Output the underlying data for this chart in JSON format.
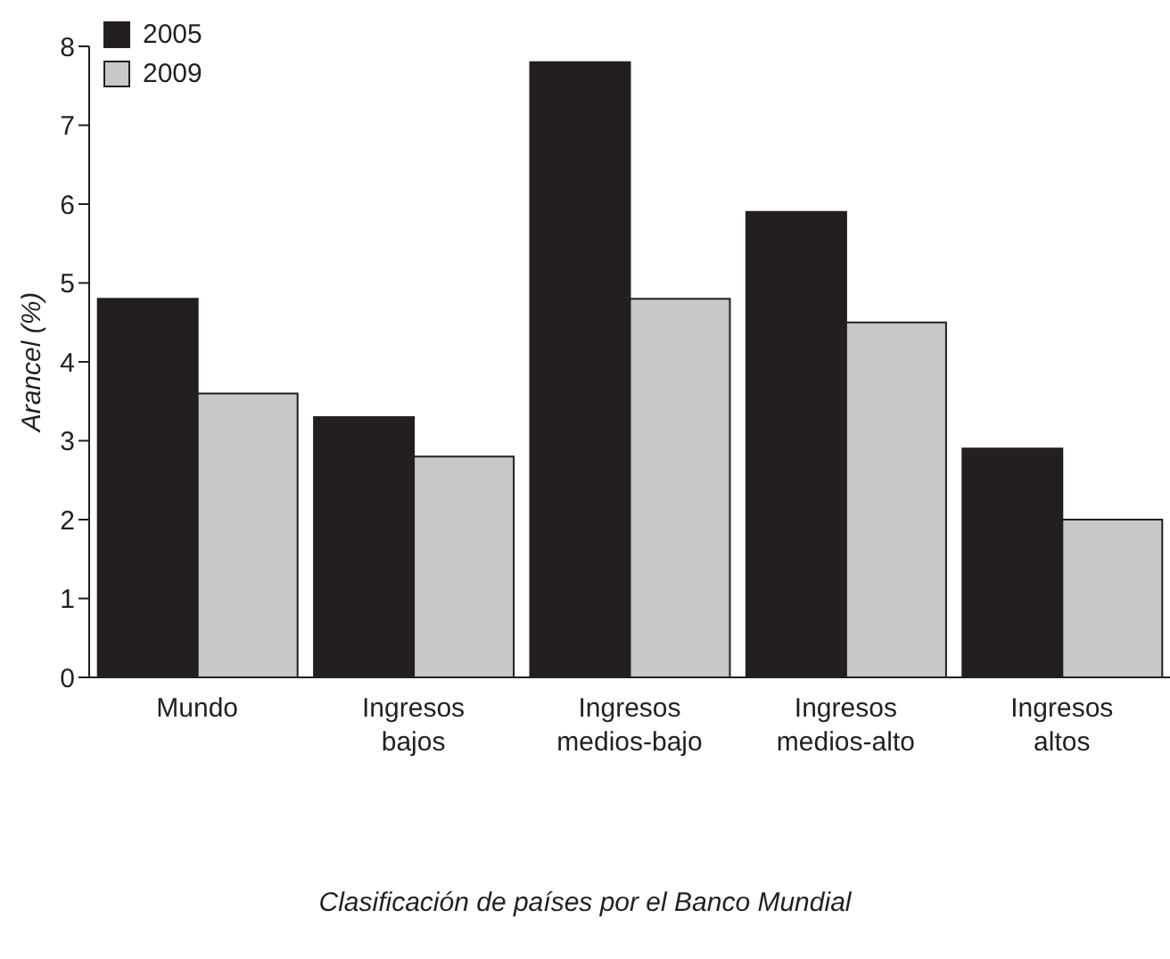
{
  "chart_data": {
    "type": "bar",
    "xlabel": "Clasificación de países por el Banco Mundial",
    "ylabel": "Arancel (%)",
    "categories": [
      "Mundo",
      "Ingresos bajos",
      "Ingresos medios-bajo",
      "Ingresos medios-alto",
      "Ingresos altos"
    ],
    "series": [
      {
        "name": "2005",
        "color": "#231f20",
        "values": [
          4.8,
          3.3,
          7.8,
          5.9,
          2.9
        ]
      },
      {
        "name": "2009",
        "color": "#c8c8c8",
        "values": [
          3.6,
          2.8,
          4.8,
          4.5,
          2.0
        ]
      }
    ],
    "ylim": [
      0,
      8
    ],
    "yticks": [
      0,
      1,
      2,
      3,
      4,
      5,
      6,
      7,
      8
    ],
    "grid": false,
    "legend": "top left"
  }
}
